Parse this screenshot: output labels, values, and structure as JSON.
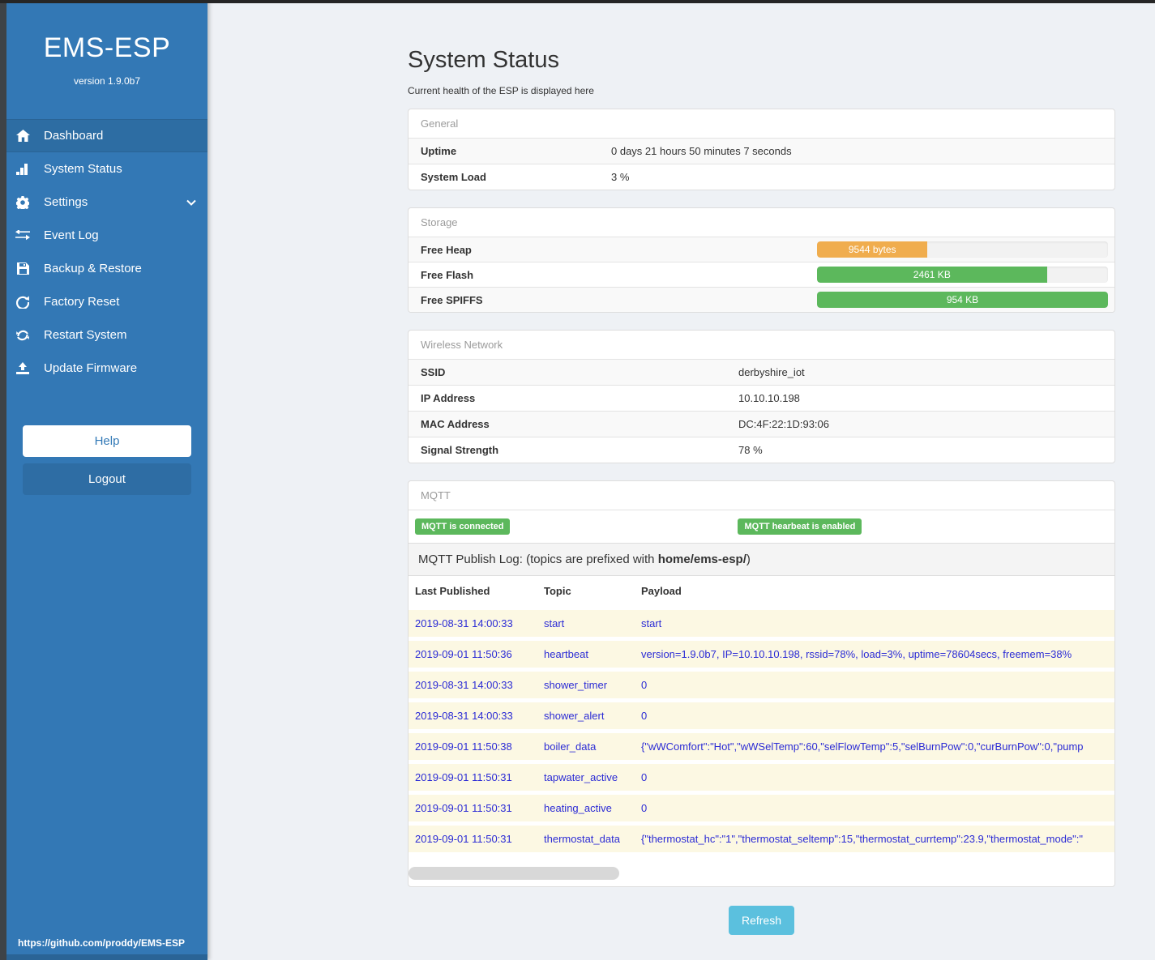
{
  "sidebar": {
    "title": "EMS-ESP",
    "version": "version 1.9.0b7",
    "items": [
      {
        "label": "Dashboard",
        "icon": "home-icon",
        "active": true
      },
      {
        "label": "System Status",
        "icon": "bar-chart-icon",
        "active": false
      },
      {
        "label": "Settings",
        "icon": "gear-icon",
        "active": false,
        "has_submenu": true
      },
      {
        "label": "Event Log",
        "icon": "exchange-icon",
        "active": false
      },
      {
        "label": "Backup & Restore",
        "icon": "save-icon",
        "active": false
      },
      {
        "label": "Factory Reset",
        "icon": "reset-icon",
        "active": false
      },
      {
        "label": "Restart System",
        "icon": "restart-icon",
        "active": false
      },
      {
        "label": "Update Firmware",
        "icon": "upload-icon",
        "active": false
      }
    ],
    "help_label": "Help",
    "logout_label": "Logout",
    "footer_link": "https://github.com/proddy/EMS-ESP"
  },
  "page": {
    "title": "System Status",
    "subtitle": "Current health of the ESP is displayed here"
  },
  "general": {
    "header": "General",
    "rows": [
      {
        "label": "Uptime",
        "value": "0 days 21 hours 50 minutes 7 seconds"
      },
      {
        "label": "System Load",
        "value": "3 %"
      }
    ]
  },
  "storage": {
    "header": "Storage",
    "rows": [
      {
        "label": "Free Heap",
        "value": "9544 bytes",
        "percent": 38,
        "color": "#f0ad4e"
      },
      {
        "label": "Free Flash",
        "value": "2461 KB",
        "percent": 79,
        "color": "#5cb85c"
      },
      {
        "label": "Free SPIFFS",
        "value": "954 KB",
        "percent": 100,
        "color": "#5cb85c"
      }
    ]
  },
  "wireless": {
    "header": "Wireless Network",
    "rows": [
      {
        "label": "SSID",
        "value": "derbyshire_iot"
      },
      {
        "label": "IP Address",
        "value": "10.10.10.198"
      },
      {
        "label": "MAC Address",
        "value": "DC:4F:22:1D:93:06"
      },
      {
        "label": "Signal Strength",
        "value": "78 %"
      }
    ]
  },
  "mqtt": {
    "header": "MQTT",
    "badges": [
      "MQTT is connected",
      "MQTT hearbeat is enabled"
    ],
    "publish_log": {
      "prefix": "MQTT Publish Log: (topics are prefixed with ",
      "bold": "home/ems-esp/",
      "suffix": ")"
    },
    "table": {
      "headers": [
        "Last Published",
        "Topic",
        "Payload"
      ],
      "rows": [
        {
          "date": "2019-08-31 14:00:33",
          "topic": "start",
          "payload": "start"
        },
        {
          "date": "2019-09-01 11:50:36",
          "topic": "heartbeat",
          "payload": "version=1.9.0b7, IP=10.10.10.198, rssid=78%, load=3%, uptime=78604secs, freemem=38%"
        },
        {
          "date": "2019-08-31 14:00:33",
          "topic": "shower_timer",
          "payload": "0"
        },
        {
          "date": "2019-08-31 14:00:33",
          "topic": "shower_alert",
          "payload": "0"
        },
        {
          "date": "2019-09-01 11:50:38",
          "topic": "boiler_data",
          "payload": "{\"wWComfort\":\"Hot\",\"wWSelTemp\":60,\"selFlowTemp\":5,\"selBurnPow\":0,\"curBurnPow\":0,\"pump"
        },
        {
          "date": "2019-09-01 11:50:31",
          "topic": "tapwater_active",
          "payload": "0"
        },
        {
          "date": "2019-09-01 11:50:31",
          "topic": "heating_active",
          "payload": "0"
        },
        {
          "date": "2019-09-01 11:50:31",
          "topic": "thermostat_data",
          "payload": "{\"thermostat_hc\":\"1\",\"thermostat_seltemp\":15,\"thermostat_currtemp\":23.9,\"thermostat_mode\":\""
        }
      ]
    }
  },
  "refresh_label": "Refresh",
  "colors": {
    "sidebar": "#3378b5",
    "sidebar_active": "#2d6da3",
    "accent_info": "#5bc0de",
    "status_green": "#5cb85c",
    "status_orange": "#f0ad4e",
    "log_text": "#2b2bd5",
    "log_row_bg": "#fcf8e3"
  }
}
